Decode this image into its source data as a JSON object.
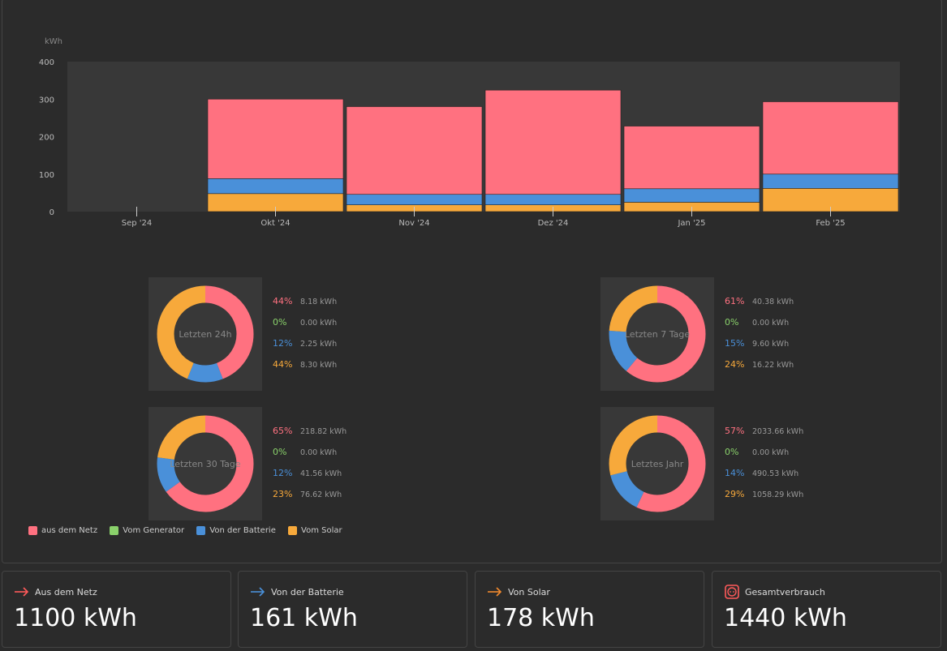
{
  "colors": {
    "grid": "#ff7180",
    "generator": "#8ad16b",
    "battery": "#4a90d9",
    "solar": "#f7a93b"
  },
  "chart_data": {
    "type": "bar",
    "ylabel": "kWh",
    "yticks": [
      "0",
      "100",
      "200",
      "300",
      "400"
    ],
    "ylim": [
      0,
      400
    ],
    "categories": [
      "Sep '24",
      "Okt '24",
      "Nov '24",
      "Dez '24",
      "Jan '25",
      "Feb '25"
    ],
    "series": [
      {
        "name": "Vom Solar",
        "color": "#f7a93b",
        "values": [
          0,
          48,
          18,
          18,
          25,
          62
        ]
      },
      {
        "name": "Von der Batterie",
        "color": "#4a90d9",
        "values": [
          0,
          40,
          28,
          28,
          36,
          38
        ]
      },
      {
        "name": "aus dem Netz",
        "color": "#ff7180",
        "values": [
          0,
          212,
          234,
          278,
          167,
          193
        ]
      }
    ]
  },
  "donuts": [
    {
      "label": "Letzten 24h",
      "rows": [
        {
          "pct": "44%",
          "val": "8.18 kWh"
        },
        {
          "pct": "0%",
          "val": "0.00 kWh"
        },
        {
          "pct": "12%",
          "val": "2.25 kWh"
        },
        {
          "pct": "44%",
          "val": "8.30 kWh"
        }
      ],
      "shares": [
        44,
        0,
        12,
        44
      ]
    },
    {
      "label": "Letzten 7 Tage",
      "rows": [
        {
          "pct": "61%",
          "val": "40.38 kWh"
        },
        {
          "pct": "0%",
          "val": "0.00 kWh"
        },
        {
          "pct": "15%",
          "val": "9.60 kWh"
        },
        {
          "pct": "24%",
          "val": "16.22 kWh"
        }
      ],
      "shares": [
        61,
        0,
        15,
        24
      ]
    },
    {
      "label": "Letzten 30 Tage",
      "rows": [
        {
          "pct": "65%",
          "val": "218.82 kWh"
        },
        {
          "pct": "0%",
          "val": "0.00 kWh"
        },
        {
          "pct": "12%",
          "val": "41.56 kWh"
        },
        {
          "pct": "23%",
          "val": "76.62 kWh"
        }
      ],
      "shares": [
        65,
        0,
        12,
        23
      ]
    },
    {
      "label": "Letztes Jahr",
      "rows": [
        {
          "pct": "57%",
          "val": "2033.66 kWh"
        },
        {
          "pct": "0%",
          "val": "0.00 kWh"
        },
        {
          "pct": "14%",
          "val": "490.53 kWh"
        },
        {
          "pct": "29%",
          "val": "1058.29 kWh"
        }
      ],
      "shares": [
        57,
        0,
        14,
        29
      ]
    }
  ],
  "legend": [
    {
      "label": "aus dem Netz",
      "color": "#ff7180"
    },
    {
      "label": "Vom Generator",
      "color": "#8ad16b"
    },
    {
      "label": "Von der Batterie",
      "color": "#4a90d9"
    },
    {
      "label": "Vom Solar",
      "color": "#f7a93b"
    }
  ],
  "cards": [
    {
      "label": "Aus dem Netz",
      "value": "1100 kWh",
      "icon": "arrow-right-icon",
      "color": "#ff5a5a"
    },
    {
      "label": "Von der Batterie",
      "value": "161 kWh",
      "icon": "arrow-right-icon",
      "color": "#4a90d9"
    },
    {
      "label": "Von Solar",
      "value": "178 kWh",
      "icon": "arrow-right-icon",
      "color": "#f28a2e"
    },
    {
      "label": "Gesamtverbrauch",
      "value": "1440 kWh",
      "icon": "socket-icon",
      "color": "#ff5a5a"
    }
  ]
}
